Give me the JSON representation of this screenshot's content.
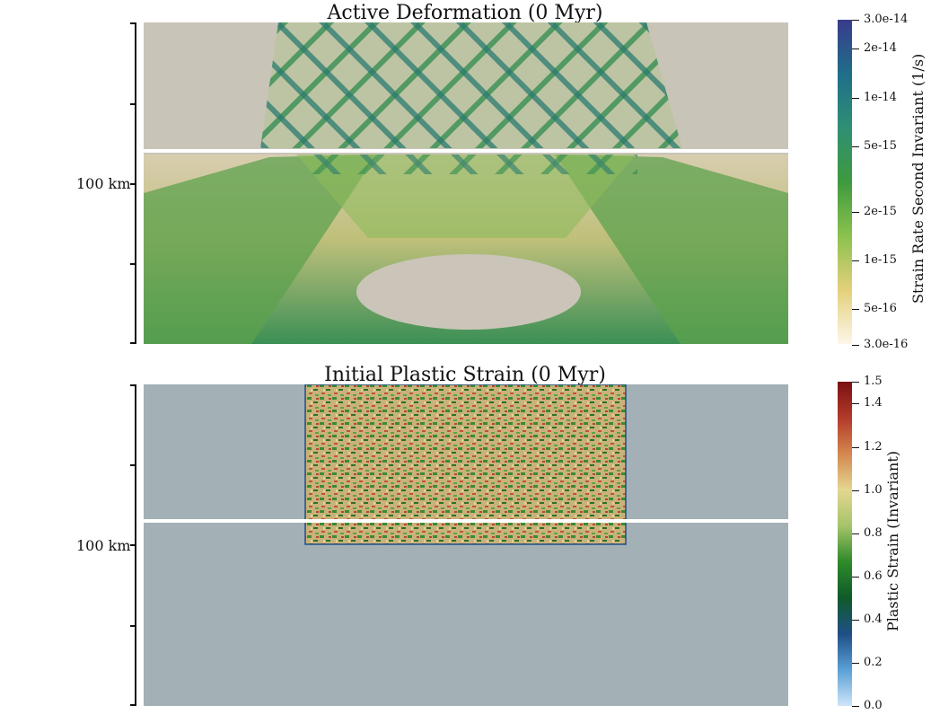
{
  "panels": [
    {
      "title": "Active Deformation (0 Myr)",
      "depth_label": "100 km"
    },
    {
      "title": "Initial Plastic Strain (0 Myr)",
      "depth_label": "100 km"
    }
  ],
  "colorbars": [
    {
      "title": "Strain Rate Second Invariant (1/s)",
      "scale": "log",
      "colors": [
        "#fdf6ea",
        "#e4d07a",
        "#8bc14f",
        "#3e9a3e",
        "#2f8f74",
        "#1f6e8a",
        "#3a3b8c"
      ],
      "tick_labels": [
        "3.0e-14",
        "2e-14",
        "1e-14",
        "5e-15",
        "2e-15",
        "1e-15",
        "5e-16",
        "3.0e-16"
      ]
    },
    {
      "title": "Plastic Strain (Invariant)",
      "scale": "linear",
      "colors": [
        "#cfe5f8",
        "#5aa0d6",
        "#1f4f86",
        "#0f5a2a",
        "#2f8a2a",
        "#a6c46a",
        "#e4d690",
        "#d4874f",
        "#b23a2a",
        "#7a1012"
      ],
      "tick_labels": [
        "1.5",
        "1.4",
        "1.2",
        "1.0",
        "0.8",
        "0.6",
        "0.4",
        "0.2",
        "0.0"
      ]
    }
  ]
}
